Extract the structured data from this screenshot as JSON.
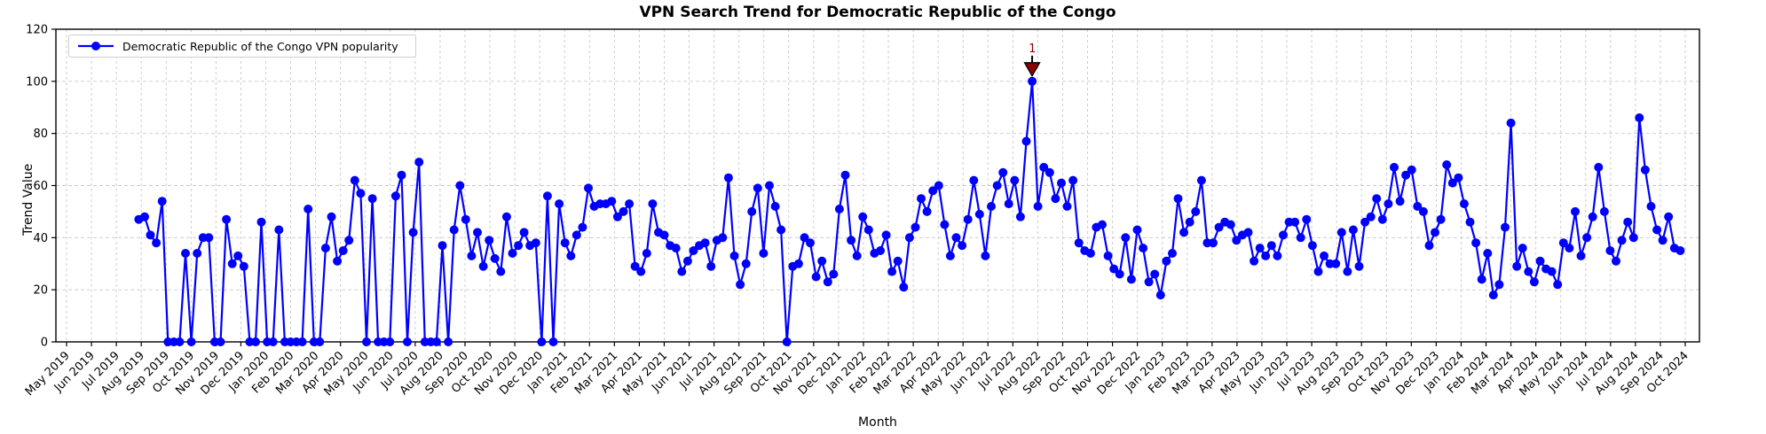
{
  "chart_data": {
    "type": "line",
    "title": "VPN Search Trend for Democratic Republic of the Congo",
    "xlabel": "Month",
    "ylabel": "Trend Value",
    "ylim": [
      0,
      120
    ],
    "yticks": [
      0,
      20,
      40,
      60,
      80,
      100,
      120
    ],
    "grid": true,
    "grid_style": "dashed",
    "grid_color": "#c9c9c9",
    "background_color": "#ffffff",
    "x_tick_labels": [
      "May 2019",
      "Jun 2019",
      "Jul 2019",
      "Aug 2019",
      "Sep 2019",
      "Oct 2019",
      "Nov 2019",
      "Dec 2019",
      "Jan 2020",
      "Feb 2020",
      "Mar 2020",
      "Apr 2020",
      "May 2020",
      "Jun 2020",
      "Jul 2020",
      "Aug 2020",
      "Sep 2020",
      "Oct 2020",
      "Nov 2020",
      "Dec 2020",
      "Jan 2021",
      "Feb 2021",
      "Mar 2021",
      "Apr 2021",
      "May 2021",
      "Jun 2021",
      "Jul 2021",
      "Aug 2021",
      "Sep 2021",
      "Oct 2021",
      "Nov 2021",
      "Dec 2021",
      "Jan 2022",
      "Feb 2022",
      "Mar 2022",
      "Apr 2022",
      "May 2022",
      "Jun 2022",
      "Jul 2022",
      "Aug 2022",
      "Sep 2022",
      "Oct 2022",
      "Nov 2022",
      "Dec 2022",
      "Jan 2023",
      "Feb 2023",
      "Mar 2023",
      "Apr 2023",
      "May 2023",
      "Jun 2023",
      "Jul 2023",
      "Aug 2023",
      "Sep 2023",
      "Oct 2023",
      "Nov 2023",
      "Dec 2023",
      "Jan 2024",
      "Feb 2024",
      "Mar 2024",
      "Apr 2024",
      "May 2024",
      "Jun 2024",
      "Jul 2024",
      "Aug 2024",
      "Sep 2024",
      "Oct 2024"
    ],
    "legend": {
      "position": "upper-left",
      "entries": [
        {
          "label": "Democratic Republic of the Congo VPN popularity",
          "color": "#0000ff",
          "marker": "circle",
          "line": "solid"
        }
      ]
    },
    "series": [
      {
        "name": "Democratic Republic of the Congo VPN popularity",
        "color": "#0000ff",
        "marker": "circle",
        "x_start_month": 2.9,
        "x_end_month": 64.8,
        "values": [
          47,
          48,
          41,
          38,
          54,
          0,
          0,
          0,
          34,
          0,
          34,
          40,
          40,
          0,
          0,
          47,
          30,
          33,
          29,
          0,
          0,
          46,
          0,
          0,
          43,
          0,
          0,
          0,
          0,
          51,
          0,
          0,
          36,
          48,
          31,
          35,
          39,
          62,
          57,
          0,
          55,
          0,
          0,
          0,
          56,
          64,
          0,
          42,
          69,
          0,
          0,
          0,
          37,
          0,
          43,
          60,
          47,
          33,
          42,
          29,
          39,
          32,
          27,
          48,
          34,
          37,
          42,
          37,
          38,
          0,
          56,
          0,
          53,
          38,
          33,
          41,
          44,
          59,
          52,
          53,
          53,
          54,
          48,
          50,
          53,
          29,
          27,
          34,
          53,
          42,
          41,
          37,
          36,
          27,
          31,
          35,
          37,
          38,
          29,
          39,
          40,
          63,
          33,
          22,
          30,
          50,
          59,
          34,
          60,
          52,
          43,
          0,
          29,
          30,
          40,
          38,
          25,
          31,
          23,
          26,
          51,
          64,
          39,
          33,
          48,
          43,
          34,
          35,
          41,
          27,
          31,
          21,
          40,
          44,
          55,
          50,
          58,
          60,
          45,
          33,
          40,
          37,
          47,
          62,
          49,
          33,
          52,
          60,
          65,
          53,
          62,
          48,
          77,
          100,
          52,
          67,
          65,
          55,
          61,
          52,
          62,
          38,
          35,
          34,
          44,
          45,
          33,
          28,
          26,
          40,
          24,
          43,
          36,
          23,
          26,
          18,
          31,
          34,
          55,
          42,
          46,
          50,
          62,
          38,
          38,
          44,
          46,
          45,
          39,
          41,
          42,
          31,
          36,
          33,
          37,
          33,
          41,
          46,
          46,
          40,
          47,
          37,
          27,
          33,
          30,
          30,
          42,
          27,
          43,
          29,
          46,
          48,
          55,
          47,
          53,
          67,
          54,
          64,
          66,
          52,
          50,
          37,
          42,
          47,
          68,
          61,
          63,
          53,
          46,
          38,
          24,
          34,
          18,
          22,
          44,
          84,
          29,
          36,
          27,
          23,
          31,
          28,
          27,
          22,
          38,
          36,
          50,
          33,
          40,
          48,
          67,
          50,
          35,
          31,
          39,
          46,
          40,
          86,
          66,
          52,
          43,
          39,
          48,
          36,
          35
        ]
      }
    ],
    "annotations": [
      {
        "label": "1",
        "target": "series-maximum",
        "value": 100,
        "marker": "triangle-down",
        "color": "#8b0000",
        "edge_color": "#000000"
      }
    ]
  }
}
